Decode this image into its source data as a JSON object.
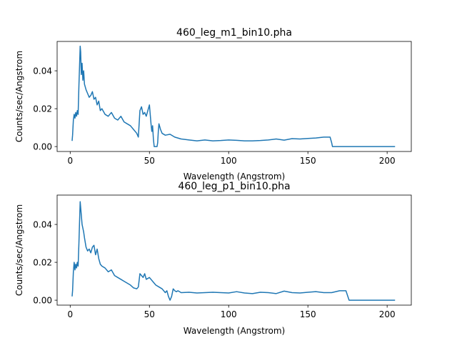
{
  "chart_data": [
    {
      "type": "line",
      "title": "460_leg_m1_bin10.pha",
      "xlabel": "Wavelength (Angstrom)",
      "ylabel": "Counts/sec/Angstrom",
      "xlim": [
        -8.25,
        215.25
      ],
      "ylim": [
        -0.0026,
        0.0555
      ],
      "xticks": [
        0,
        50,
        100,
        150,
        200
      ],
      "yticks": [
        0.0,
        0.02,
        0.04
      ],
      "xtick_labels": [
        "0",
        "50",
        "100",
        "150",
        "200"
      ],
      "ytick_labels": [
        "0.00",
        "0.02",
        "0.04"
      ],
      "color": "#1f77b4",
      "series": [
        {
          "name": "460_leg_m1_bin10.pha",
          "x": [
            1.2,
            1.5,
            2.0,
            2.5,
            3.0,
            3.5,
            4.0,
            4.5,
            5.0,
            5.5,
            6.0,
            6.3,
            6.6,
            7.0,
            7.5,
            8.0,
            8.5,
            9.0,
            10.0,
            11.0,
            12.0,
            13.0,
            14.0,
            15.0,
            16.0,
            17.0,
            18.0,
            19.0,
            20.0,
            22.0,
            24.0,
            26.0,
            28.0,
            30.0,
            32.0,
            34.0,
            36.0,
            38.0,
            40.0,
            42.0,
            43.0,
            44.0,
            45.0,
            46.0,
            47.0,
            48.0,
            49.0,
            50.0,
            51.0,
            51.5,
            52.0,
            52.5,
            53.0,
            54.0,
            54.8,
            55.2,
            55.6,
            56.0,
            57.0,
            58.0,
            60.0,
            63.0,
            66.0,
            70.0,
            75.0,
            80.0,
            85.0,
            90.0,
            95.0,
            100.0,
            105.0,
            110.0,
            115.0,
            120.0,
            125.0,
            130.0,
            135.0,
            140.0,
            145.0,
            150.0,
            155.0,
            160.0,
            164.0,
            165.0,
            165.5,
            180.0,
            190.0,
            200.0,
            205.0
          ],
          "values": [
            0.003,
            0.006,
            0.014,
            0.017,
            0.015,
            0.018,
            0.016,
            0.019,
            0.017,
            0.032,
            0.045,
            0.053,
            0.05,
            0.038,
            0.044,
            0.035,
            0.04,
            0.033,
            0.03,
            0.028,
            0.026,
            0.027,
            0.029,
            0.025,
            0.026,
            0.022,
            0.024,
            0.019,
            0.02,
            0.017,
            0.016,
            0.018,
            0.015,
            0.014,
            0.016,
            0.013,
            0.012,
            0.011,
            0.009,
            0.007,
            0.005,
            0.019,
            0.021,
            0.017,
            0.018,
            0.016,
            0.019,
            0.022,
            0.012,
            0.008,
            0.011,
            0.004,
            0.0,
            0.0,
            0.0,
            0.002,
            0.008,
            0.012,
            0.009,
            0.007,
            0.006,
            0.0065,
            0.005,
            0.004,
            0.0035,
            0.003,
            0.0035,
            0.003,
            0.0032,
            0.0035,
            0.0033,
            0.003,
            0.003,
            0.0032,
            0.0035,
            0.004,
            0.0034,
            0.0042,
            0.004,
            0.0043,
            0.0045,
            0.005,
            0.005,
            0.002,
            0.0,
            0.0,
            0.0,
            0.0,
            0.0
          ]
        }
      ]
    },
    {
      "type": "line",
      "title": "460_leg_p1_bin10.pha",
      "xlabel": "Wavelength (Angstrom)",
      "ylabel": "Counts/sec/Angstrom",
      "xlim": [
        -8.25,
        215.25
      ],
      "ylim": [
        -0.0026,
        0.0555
      ],
      "xticks": [
        0,
        50,
        100,
        150,
        200
      ],
      "yticks": [
        0.0,
        0.02,
        0.04
      ],
      "xtick_labels": [
        "0",
        "50",
        "100",
        "150",
        "200"
      ],
      "ytick_labels": [
        "0.00",
        "0.02",
        "0.04"
      ],
      "color": "#1f77b4",
      "series": [
        {
          "name": "460_leg_p1_bin10.pha",
          "x": [
            1.2,
            1.5,
            2.0,
            2.5,
            3.0,
            3.5,
            4.0,
            4.5,
            5.0,
            5.5,
            6.0,
            6.3,
            6.6,
            7.0,
            7.5,
            8.0,
            8.5,
            9.0,
            10.0,
            11.0,
            12.0,
            13.0,
            14.0,
            15.0,
            16.0,
            17.0,
            18.0,
            19.0,
            20.0,
            22.0,
            24.0,
            26.0,
            28.0,
            30.0,
            32.0,
            34.0,
            36.0,
            38.0,
            40.0,
            42.0,
            43.0,
            44.0,
            45.0,
            46.0,
            47.0,
            48.0,
            50.0,
            52.0,
            54.0,
            56.0,
            58.0,
            60.0,
            61.0,
            62.0,
            63.0,
            64.0,
            65.0,
            66.0,
            67.0,
            68.0,
            70.0,
            75.0,
            80.0,
            85.0,
            90.0,
            95.0,
            100.0,
            105.0,
            110.0,
            115.0,
            120.0,
            125.0,
            130.0,
            135.0,
            140.0,
            145.0,
            150.0,
            155.0,
            160.0,
            165.0,
            170.0,
            174.0,
            175.0,
            176.0,
            180.0,
            190.0,
            200.0,
            205.0
          ],
          "values": [
            0.002,
            0.005,
            0.015,
            0.02,
            0.016,
            0.019,
            0.017,
            0.02,
            0.018,
            0.03,
            0.044,
            0.052,
            0.049,
            0.045,
            0.04,
            0.038,
            0.036,
            0.033,
            0.028,
            0.026,
            0.027,
            0.025,
            0.028,
            0.029,
            0.024,
            0.027,
            0.022,
            0.019,
            0.018,
            0.017,
            0.015,
            0.016,
            0.013,
            0.012,
            0.011,
            0.01,
            0.009,
            0.008,
            0.0065,
            0.006,
            0.007,
            0.014,
            0.013,
            0.012,
            0.014,
            0.011,
            0.012,
            0.01,
            0.008,
            0.007,
            0.006,
            0.004,
            0.005,
            0.002,
            0.0,
            0.002,
            0.006,
            0.005,
            0.0045,
            0.005,
            0.004,
            0.0042,
            0.0038,
            0.004,
            0.0042,
            0.004,
            0.0038,
            0.0045,
            0.0038,
            0.0035,
            0.0042,
            0.004,
            0.0035,
            0.0048,
            0.004,
            0.0038,
            0.0042,
            0.0045,
            0.004,
            0.004,
            0.005,
            0.005,
            0.0025,
            0.0,
            0.0,
            0.0,
            0.0,
            0.0
          ]
        }
      ]
    }
  ]
}
